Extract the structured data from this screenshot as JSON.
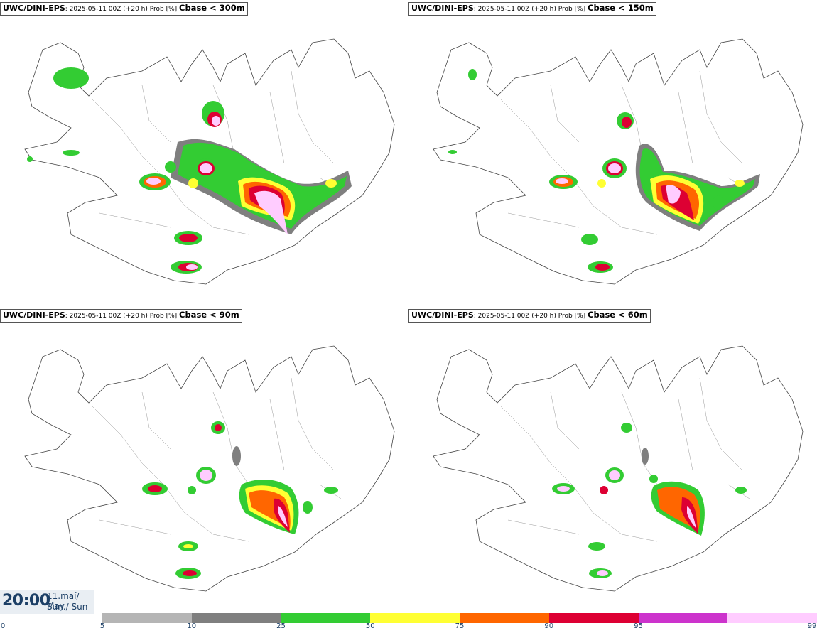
{
  "panels": [
    {
      "model": "UWC/DINI-EPS",
      "run": ": 2025-05-11 00Z (+20 h) Prob [%] ",
      "param": "Cbase < 300m"
    },
    {
      "model": "UWC/DINI-EPS",
      "run": ": 2025-05-11 00Z (+20 h) Prob [%] ",
      "param": "Cbase < 150m"
    },
    {
      "model": "UWC/DINI-EPS",
      "run": ": 2025-05-11 00Z (+20 h) Prob [%] ",
      "param": "Cbase < 90m"
    },
    {
      "model": "UWC/DINI-EPS",
      "run": ": 2025-05-11 00Z (+20 h) Prob [%] ",
      "param": "Cbase < 60m"
    }
  ],
  "valid_time": {
    "time": "20:00",
    "date": "11.maí/ May",
    "day": "Sun./ Sun"
  },
  "legend": {
    "ticks": [
      "0",
      "5",
      "10",
      "25",
      "50",
      "75",
      "90",
      "95",
      "99"
    ],
    "colors": [
      "#b5b5b5",
      "#7f7f7f",
      "#33cc33",
      "#ffff33",
      "#ff6600",
      "#dd0033",
      "#cc33cc",
      "#ffccff"
    ]
  }
}
